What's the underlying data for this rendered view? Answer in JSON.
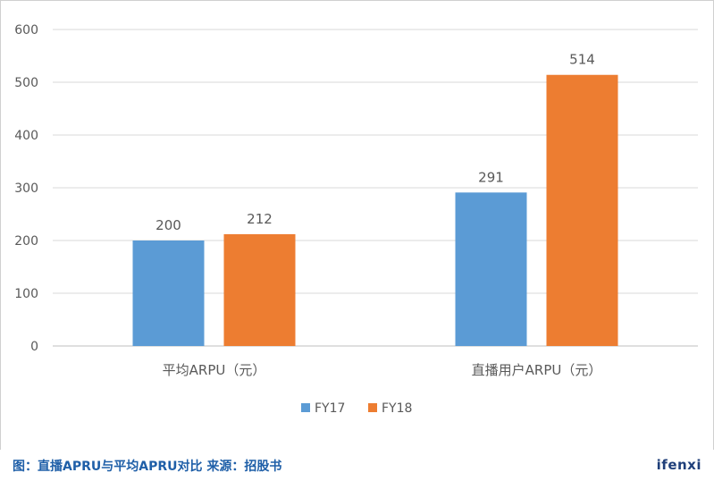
{
  "chart_data": {
    "type": "bar",
    "categories": [
      "平均ARPU（元）",
      "直播用户ARPU（元）"
    ],
    "series": [
      {
        "name": "FY17",
        "values": [
          200,
          291
        ],
        "color": "#5b9bd5"
      },
      {
        "name": "FY18",
        "values": [
          212,
          514
        ],
        "color": "#ed7d31"
      }
    ],
    "ylim": [
      0,
      600
    ],
    "yticks": [
      0,
      100,
      200,
      300,
      400,
      500,
      600
    ],
    "grid": true,
    "data_labels": true,
    "legend_position": "bottom"
  },
  "caption": "图：直播APRU与平均APRU对比  来源：招股书",
  "brand": "ifenxi"
}
